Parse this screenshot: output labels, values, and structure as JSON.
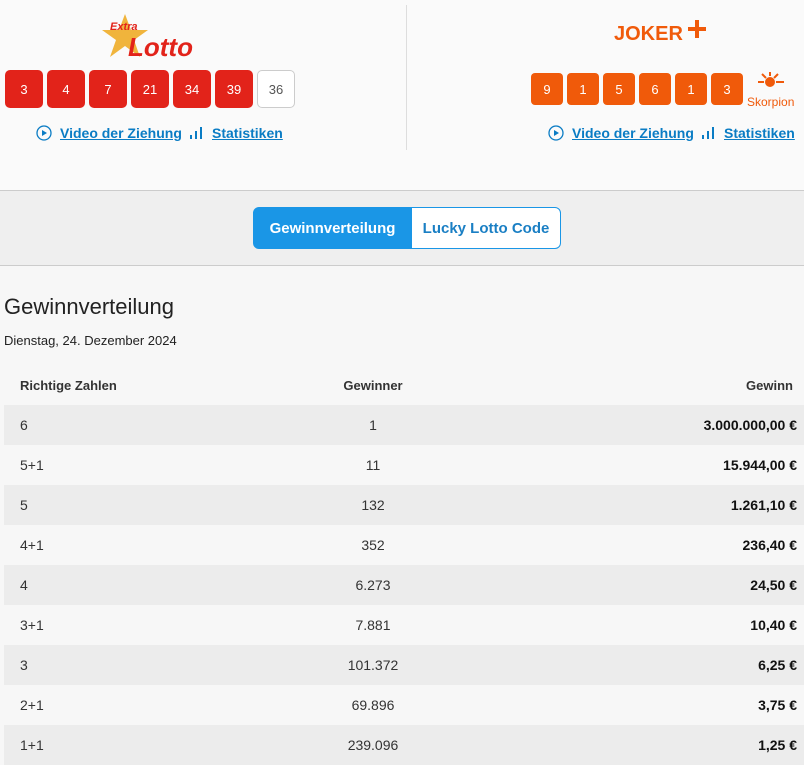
{
  "lotto": {
    "logo_small": "Extra",
    "logo": "Lotto",
    "numbers": [
      "3",
      "4",
      "7",
      "21",
      "34",
      "39"
    ],
    "bonus": "36",
    "links": [
      "Video der Ziehung",
      "Statistiken"
    ]
  },
  "joker": {
    "logo": "JOKER",
    "numbers": [
      "9",
      "1",
      "5",
      "6",
      "1",
      "3"
    ],
    "sign": "Skorpion",
    "links": [
      "Video der Ziehung",
      "Statistiken"
    ]
  },
  "tabs": [
    "Gewinnverteilung",
    "Lucky Lotto Code"
  ],
  "section": {
    "title": "Gewinnverteilung",
    "date": "Dienstag, 24. Dezember 2024"
  },
  "table": {
    "headers": [
      "Richtige Zahlen",
      "Gewinner",
      "Gewinn"
    ],
    "rows": [
      [
        "6",
        "1",
        "3.000.000,00 €"
      ],
      [
        "5+1",
        "11",
        "15.944,00 €"
      ],
      [
        "5",
        "132",
        "1.261,10 €"
      ],
      [
        "4+1",
        "352",
        "236,40 €"
      ],
      [
        "4",
        "6.273",
        "24,50 €"
      ],
      [
        "3+1",
        "7.881",
        "10,40 €"
      ],
      [
        "3",
        "101.372",
        "6,25 €"
      ],
      [
        "2+1",
        "69.896",
        "3,75 €"
      ],
      [
        "1+1",
        "239.096",
        "1,25 €"
      ]
    ]
  }
}
